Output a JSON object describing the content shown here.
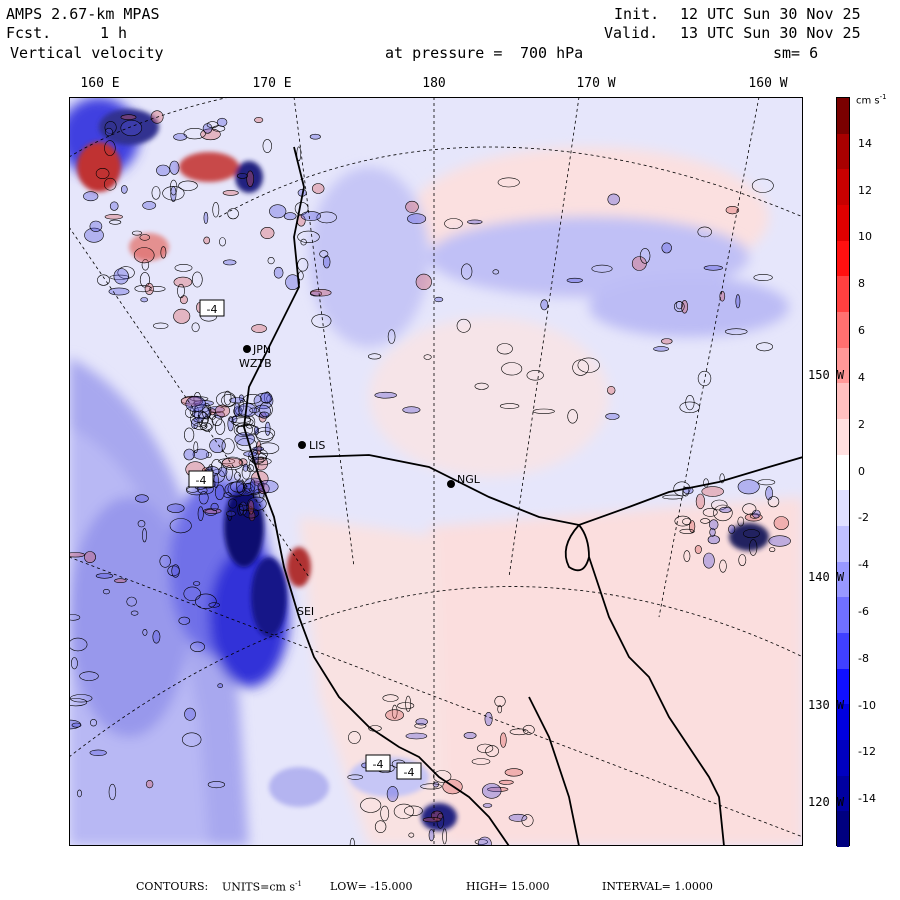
{
  "header": {
    "model": "AMPS 2.67-km MPAS",
    "fcst_label": "Fcst.",
    "fcst_value": "1 h",
    "variable": "Vertical velocity",
    "pressure_label": "at pressure =",
    "pressure_value": "700 hPa",
    "init_label": "Init.",
    "init_value": "12 UTC Sun 30 Nov 25",
    "valid_label": "Valid.",
    "valid_value": "13 UTC Sun 30 Nov 25",
    "smoothing": "sm= 6"
  },
  "lon_labels": [
    "160 E",
    "170 E",
    "180",
    "170 W",
    "160 W"
  ],
  "lat_labels": [
    "150 W",
    "140 W",
    "130 W",
    "120 W"
  ],
  "colorbar": {
    "units_text": "cm s",
    "units_exp": "-1",
    "ticks": [
      "14",
      "12",
      "10",
      "8",
      "6",
      "4",
      "2",
      "0",
      "-2",
      "-4",
      "-6",
      "-8",
      "-10",
      "-12",
      "-14"
    ],
    "colors": [
      "#7a0000",
      "#a80000",
      "#c80000",
      "#e00000",
      "#ff1010",
      "#ff4040",
      "#ff7070",
      "#ff9898",
      "#ffc0c0",
      "#ffe0e0",
      "#ffffff",
      "#e0e0ff",
      "#c0c0ff",
      "#9898ff",
      "#7070ff",
      "#4040ff",
      "#1010ff",
      "#0000e0",
      "#0000c0",
      "#0000a0",
      "#000080"
    ]
  },
  "stations": [
    "JPN",
    "WZTB",
    "LIS",
    "NGL",
    "SEI"
  ],
  "contour_labels": [
    "-4",
    "-4",
    "-4",
    "-4"
  ],
  "footer": {
    "contours": "CONTOURS:",
    "units_label": "UNITS=cm s",
    "units_exp": "-1",
    "low": "LOW= -15.000",
    "high": "HIGH= 15.000",
    "interval": "INTERVAL= 1.0000"
  }
}
